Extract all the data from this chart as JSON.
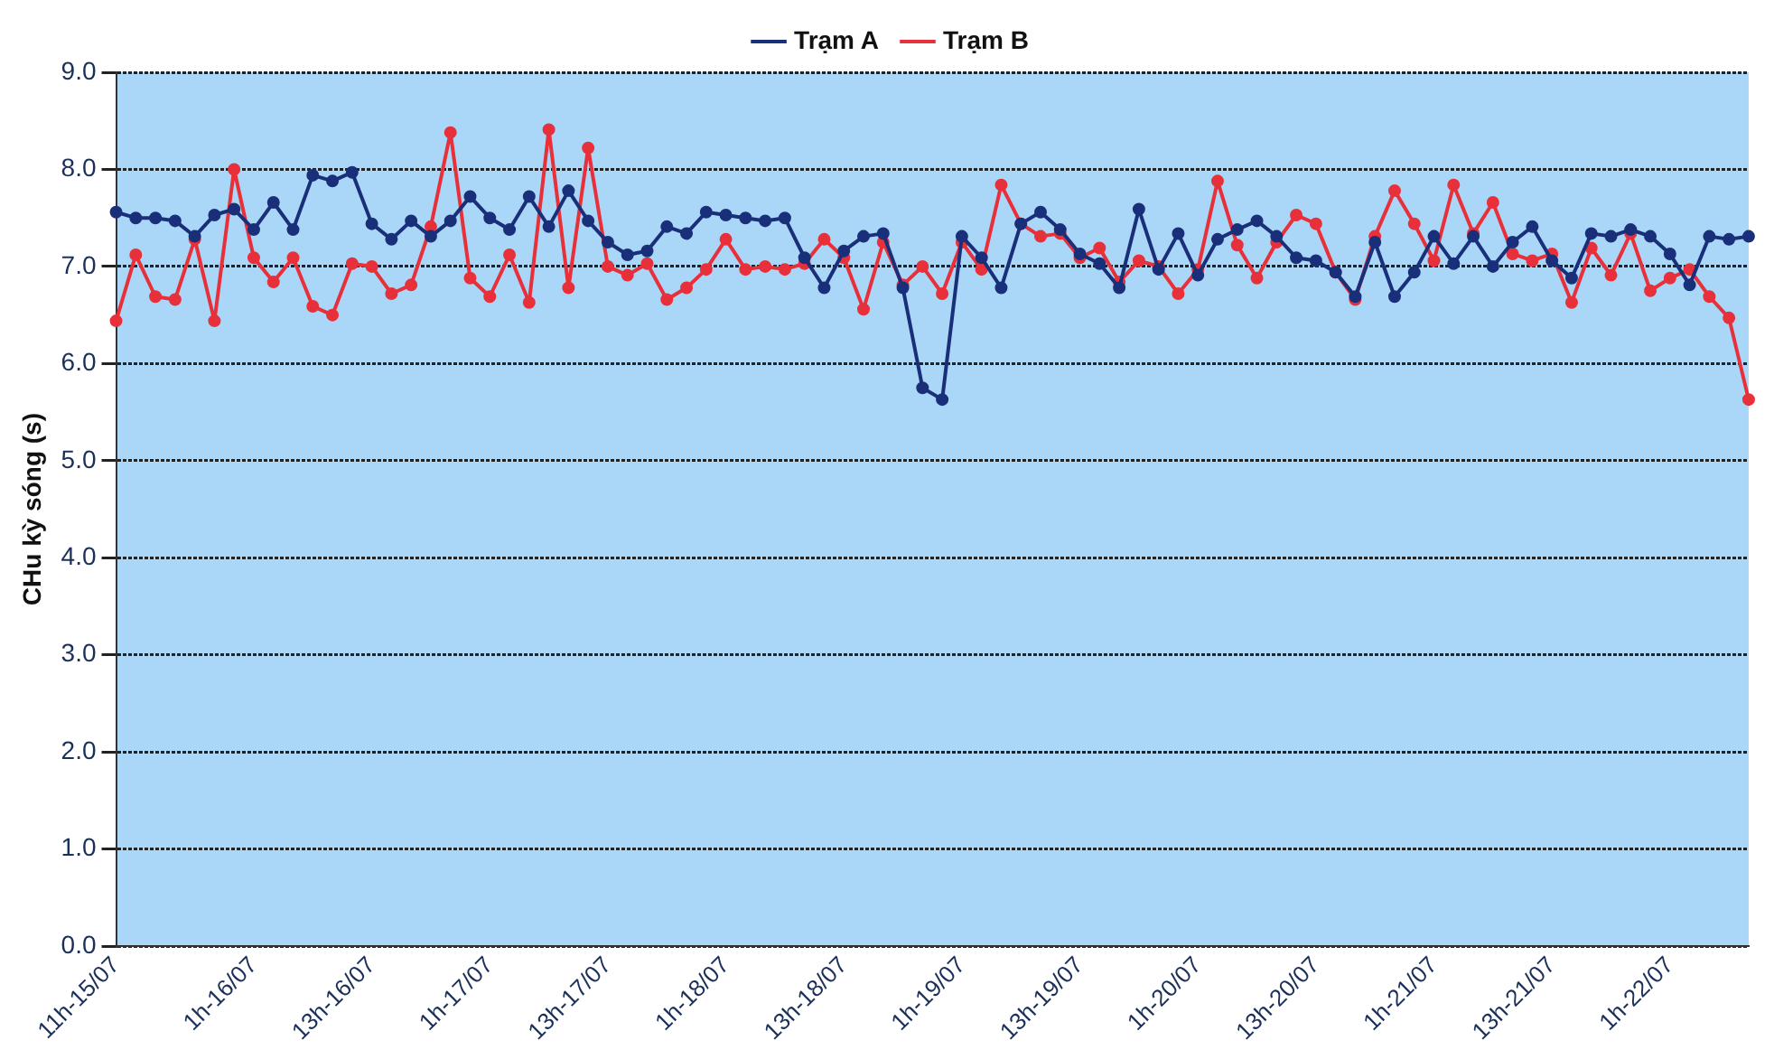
{
  "chart_data": {
    "type": "line",
    "ylabel": "CHu kỳ sóng (s)",
    "categories": [
      "11h-15/07",
      null,
      null,
      null,
      null,
      null,
      null,
      "1h-16/07",
      null,
      null,
      null,
      null,
      null,
      "13h-16/07",
      null,
      null,
      null,
      null,
      null,
      "1h-17/07",
      null,
      null,
      null,
      null,
      null,
      "13h-17/07",
      null,
      null,
      null,
      null,
      null,
      "1h-18/07",
      null,
      null,
      null,
      null,
      null,
      "13h-18/07",
      null,
      null,
      null,
      null,
      null,
      "1h-19/07",
      null,
      null,
      null,
      null,
      null,
      "13h-19/07",
      null,
      null,
      null,
      null,
      null,
      "1h-20/07",
      null,
      null,
      null,
      null,
      null,
      "13h-20/07",
      null,
      null,
      null,
      null,
      null,
      "1h-21/07",
      null,
      null,
      null,
      null,
      null,
      "13h-21/07",
      null,
      null,
      null,
      null,
      null,
      "1h-22/07",
      null,
      null,
      null,
      null
    ],
    "ylim": [
      0,
      9
    ],
    "yticks": [
      {
        "value": 0,
        "label": "0.0"
      },
      {
        "value": 1,
        "label": "1.0"
      },
      {
        "value": 2,
        "label": "2.0"
      },
      {
        "value": 3,
        "label": "3.0"
      },
      {
        "value": 4,
        "label": "4.0"
      },
      {
        "value": 5,
        "label": "5.0"
      },
      {
        "value": 6,
        "label": "6.0"
      },
      {
        "value": 7,
        "label": "7.0"
      },
      {
        "value": 8,
        "label": "8.0"
      },
      {
        "value": 9,
        "label": "9.0"
      }
    ],
    "grid": "y",
    "legend": "top",
    "marker": "circle",
    "line_style": "solid",
    "series": [
      {
        "name": "Trạm A",
        "color": "#1a2f7a",
        "values": [
          7.56,
          7.5,
          7.5,
          7.47,
          7.31,
          7.53,
          7.59,
          7.38,
          7.66,
          7.38,
          7.94,
          7.88,
          7.97,
          7.44,
          7.28,
          7.47,
          7.31,
          7.47,
          7.72,
          7.5,
          7.38,
          7.72,
          7.41,
          7.78,
          7.47,
          7.25,
          7.12,
          7.16,
          7.41,
          7.34,
          7.56,
          7.53,
          7.5,
          7.47,
          7.5,
          7.09,
          6.78,
          7.16,
          7.31,
          7.34,
          6.78,
          5.75,
          5.63,
          7.31,
          7.09,
          6.78,
          7.44,
          7.56,
          7.38,
          7.13,
          7.03,
          6.78,
          7.59,
          6.97,
          7.34,
          6.91,
          7.28,
          7.38,
          7.47,
          7.31,
          7.09,
          7.06,
          6.94,
          6.69,
          7.25,
          6.69,
          6.94,
          7.31,
          7.03,
          7.31,
          7.0,
          7.25,
          7.41,
          7.06,
          6.88,
          7.34,
          7.31,
          7.38,
          7.31,
          7.13,
          6.81,
          7.31,
          7.28,
          7.31
        ]
      },
      {
        "name": "Trạm B",
        "color": "#e8303a",
        "values": [
          6.44,
          7.12,
          6.69,
          6.66,
          7.28,
          6.44,
          8.0,
          7.09,
          6.84,
          7.09,
          6.59,
          6.5,
          7.03,
          7.0,
          6.72,
          6.81,
          7.41,
          8.38,
          6.88,
          6.69,
          7.12,
          6.63,
          8.41,
          6.78,
          8.22,
          7.0,
          6.91,
          7.03,
          6.66,
          6.78,
          6.97,
          7.28,
          6.97,
          7.0,
          6.97,
          7.03,
          7.28,
          7.09,
          6.56,
          7.25,
          6.81,
          7.0,
          6.72,
          7.25,
          6.97,
          7.84,
          7.44,
          7.31,
          7.34,
          7.09,
          7.19,
          6.84,
          7.06,
          7.0,
          6.72,
          6.97,
          7.88,
          7.22,
          6.88,
          7.25,
          7.53,
          7.44,
          6.94,
          6.66,
          7.31,
          7.78,
          7.44,
          7.06,
          7.84,
          7.34,
          7.66,
          7.13,
          7.06,
          7.13,
          6.63,
          7.19,
          6.91,
          7.34,
          6.75,
          6.88,
          6.97,
          6.69,
          6.47,
          5.63
        ]
      }
    ]
  }
}
